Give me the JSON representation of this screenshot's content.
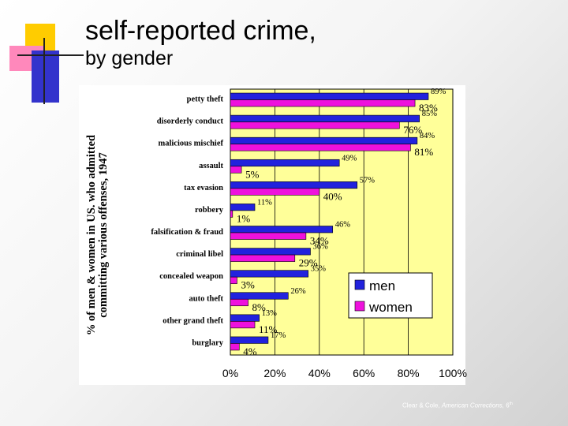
{
  "title": {
    "line1": "self-reported crime,",
    "line2": "by gender"
  },
  "footer": {
    "authors": "Clear & Cole,",
    "book": "American Corrections,",
    "edition": "6",
    "edition_suffix": "th"
  },
  "colors": {
    "men": "#2222dd",
    "women": "#ee11dd",
    "plot_bg": "#ffff99",
    "deco_yellow": "#ffcc00",
    "deco_blue": "#3333cc",
    "deco_pink": "#ff88bb"
  },
  "chart_data": {
    "type": "bar",
    "orientation": "horizontal",
    "title": "self-reported crime, by gender",
    "ylabel_line1": "% of men & women in US. who admitted",
    "ylabel_line2": "committing various offenses, 1947",
    "xlim": [
      0,
      100
    ],
    "xticks": [
      "0%",
      "20%",
      "40%",
      "60%",
      "80%",
      "100%"
    ],
    "xtick_values": [
      0,
      20,
      40,
      60,
      80,
      100
    ],
    "grid": true,
    "legend_position": "center-right",
    "categories": [
      "petty theft",
      "disorderly conduct",
      "malicious mischief",
      "assault",
      "tax evasion",
      "robbery",
      "falsification & fraud",
      "criminal libel",
      "concealed weapon",
      "auto theft",
      "other grand theft",
      "burglary"
    ],
    "series": [
      {
        "name": "men",
        "values": [
          89,
          85,
          84,
          49,
          57,
          11,
          46,
          36,
          35,
          26,
          13,
          17
        ],
        "labels": [
          "89%",
          "85%",
          "84%",
          "49%",
          "57%",
          "11%",
          "46%",
          "36%",
          "35%",
          "26%",
          "13%",
          "17%"
        ]
      },
      {
        "name": "women",
        "values": [
          83,
          76,
          81,
          5,
          40,
          1,
          34,
          29,
          3,
          8,
          11,
          4
        ],
        "labels": [
          "83%",
          "76%",
          "81%",
          "5%",
          "40%",
          "1%",
          "34%",
          "29%",
          "3%",
          "8%",
          "11%",
          "4%"
        ]
      }
    ]
  }
}
